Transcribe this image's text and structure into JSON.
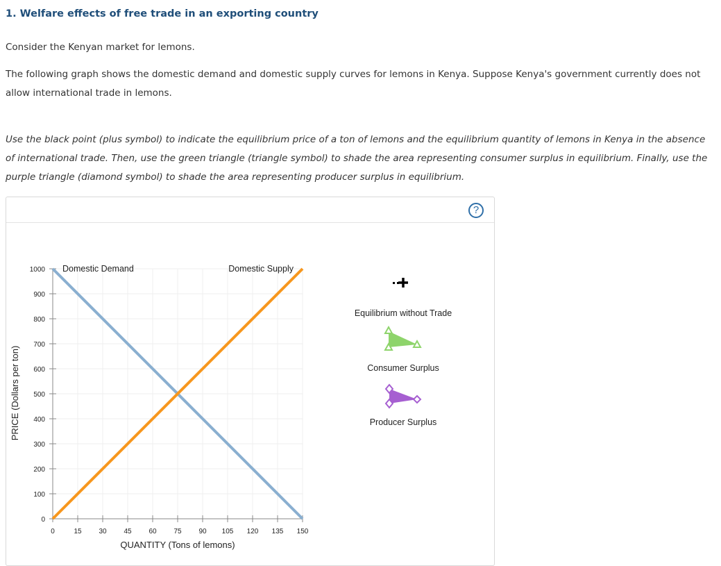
{
  "question": {
    "title": "1. Welfare effects of free trade in an exporting country",
    "intro": "Consider the Kenyan market for lemons.",
    "description": "The following graph shows the domestic demand and domestic supply curves for lemons in Kenya. Suppose Kenya's government currently does not allow international trade in lemons.",
    "instructions": "Use the black point (plus symbol) to indicate the equilibrium price of a ton of lemons and the equilibrium quantity of lemons in Kenya in the absence of international trade. Then, use the green triangle (triangle symbol) to shade the area representing consumer surplus in equilibrium. Finally, use the purple triangle (diamond symbol) to shade the area representing producer surplus in equilibrium."
  },
  "panel": {
    "help_label": "?"
  },
  "chart_data": {
    "type": "line",
    "xlabel": "QUANTITY (Tons of lemons)",
    "ylabel": "PRICE (Dollars per ton)",
    "xlim": [
      0,
      150
    ],
    "ylim": [
      0,
      1000
    ],
    "x_ticks": [
      0,
      15,
      30,
      45,
      60,
      75,
      90,
      105,
      120,
      135,
      150
    ],
    "y_ticks": [
      0,
      100,
      200,
      300,
      400,
      500,
      600,
      700,
      800,
      900,
      1000
    ],
    "grid": true,
    "series": [
      {
        "name": "Domestic Demand",
        "color": "#8aafd0",
        "points": [
          [
            0,
            1000
          ],
          [
            150,
            0
          ]
        ]
      },
      {
        "name": "Domestic Supply",
        "color": "#f7971e",
        "points": [
          [
            0,
            0
          ],
          [
            150,
            1000
          ]
        ]
      }
    ]
  },
  "tools": [
    {
      "label": "Equilibrium without Trade",
      "icon": "plus-point-icon",
      "color": "#000000"
    },
    {
      "label": "Consumer Surplus",
      "icon": "green-triangle-icon",
      "color": "#8ed46b"
    },
    {
      "label": "Producer Surplus",
      "icon": "purple-diamond-icon",
      "color": "#a65fd1"
    }
  ]
}
